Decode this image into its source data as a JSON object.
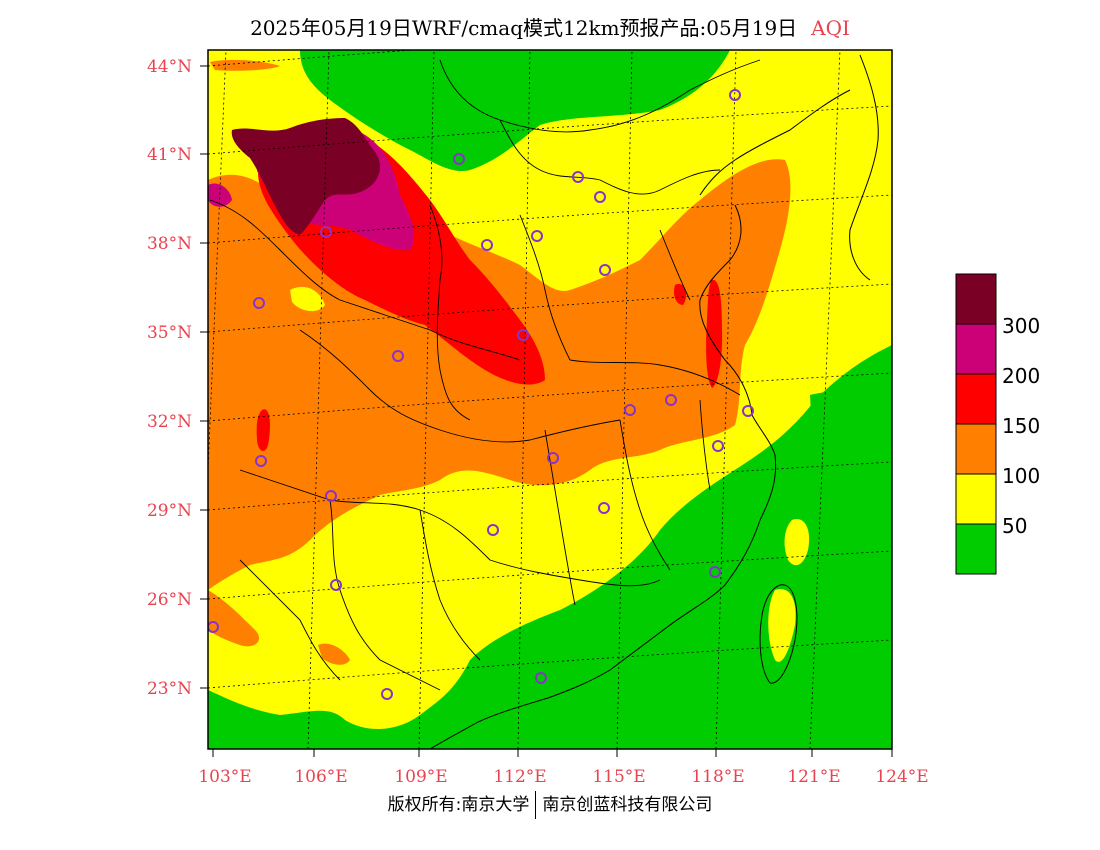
{
  "title": {
    "main": "2025年05月19日WRF/cmaq模式12km预报产品:05月19日",
    "tag": "AQI"
  },
  "colors": {
    "green": "#00cc00",
    "yellow": "#ffff00",
    "orange": "#ff8000",
    "red": "#ff0000",
    "purple": "#cc0077",
    "maroon": "#7a0025",
    "label": "#e8434f",
    "station": "#8833cc"
  },
  "axes": {
    "lat_labels": [
      "44°N",
      "41°N",
      "38°N",
      "35°N",
      "32°N",
      "29°N",
      "26°N",
      "23°N"
    ],
    "lon_labels": [
      "103°E",
      "106°E",
      "109°E",
      "112°E",
      "115°E",
      "118°E",
      "121°E",
      "124°E"
    ]
  },
  "legend": {
    "labels": [
      "300",
      "200",
      "150",
      "100",
      "50"
    ]
  },
  "footer": {
    "left": "版权所有:南京大学",
    "right": "南京创蓝科技有限公司"
  }
}
